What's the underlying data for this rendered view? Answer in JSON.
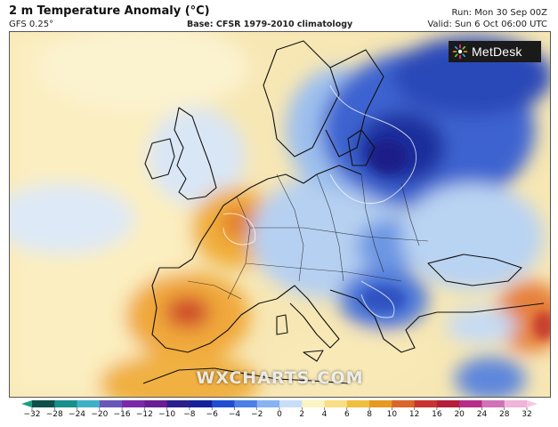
{
  "header": {
    "title": "2 m Temperature Anomaly (°C)",
    "model": "GFS 0.25°",
    "base": "Base: CFSR 1979-2010 climatology",
    "run": "Run: Mon 30 Sep 00Z",
    "valid": "Valid: Sun 6 Oct 06:00 UTC"
  },
  "logo": {
    "text": "MetDesk"
  },
  "watermark": "WXCHARTS.COM",
  "colorbar": {
    "ticks": [
      "−32",
      "−28",
      "−24",
      "−20",
      "−16",
      "−12",
      "−10",
      "−8",
      "−6",
      "−4",
      "−2",
      "0",
      "2",
      "4",
      "6",
      "8",
      "10",
      "12",
      "16",
      "20",
      "24",
      "28",
      "32"
    ],
    "colors": [
      "#0f4f49",
      "#178f8a",
      "#3fb0c8",
      "#6a56b8",
      "#7a2aa8",
      "#6a1d92",
      "#2b1f8c",
      "#14219a",
      "#1f4fd0",
      "#4d7fe4",
      "#88b3f2",
      "#c8ddf8",
      "#fbf3c2",
      "#f8de84",
      "#f2be3f",
      "#e59a22",
      "#d9662a",
      "#c8342f",
      "#b31e3a",
      "#b52d8a",
      "#cf72b7",
      "#f0b4d8"
    ],
    "extend_low": "#1e9c86",
    "extend_high": "#f6c8e4"
  },
  "map": {
    "region": "Europe",
    "colors": {
      "sea_warm": "#fbeec0",
      "sea_cool": "#e6f0fa",
      "blue_deep": "#1a2f9c",
      "blue_mid": "#3b66d4",
      "blue_light": "#a7c7f0",
      "orange": "#ec9f2e",
      "red": "#c8342f",
      "coast": "#111111"
    }
  }
}
